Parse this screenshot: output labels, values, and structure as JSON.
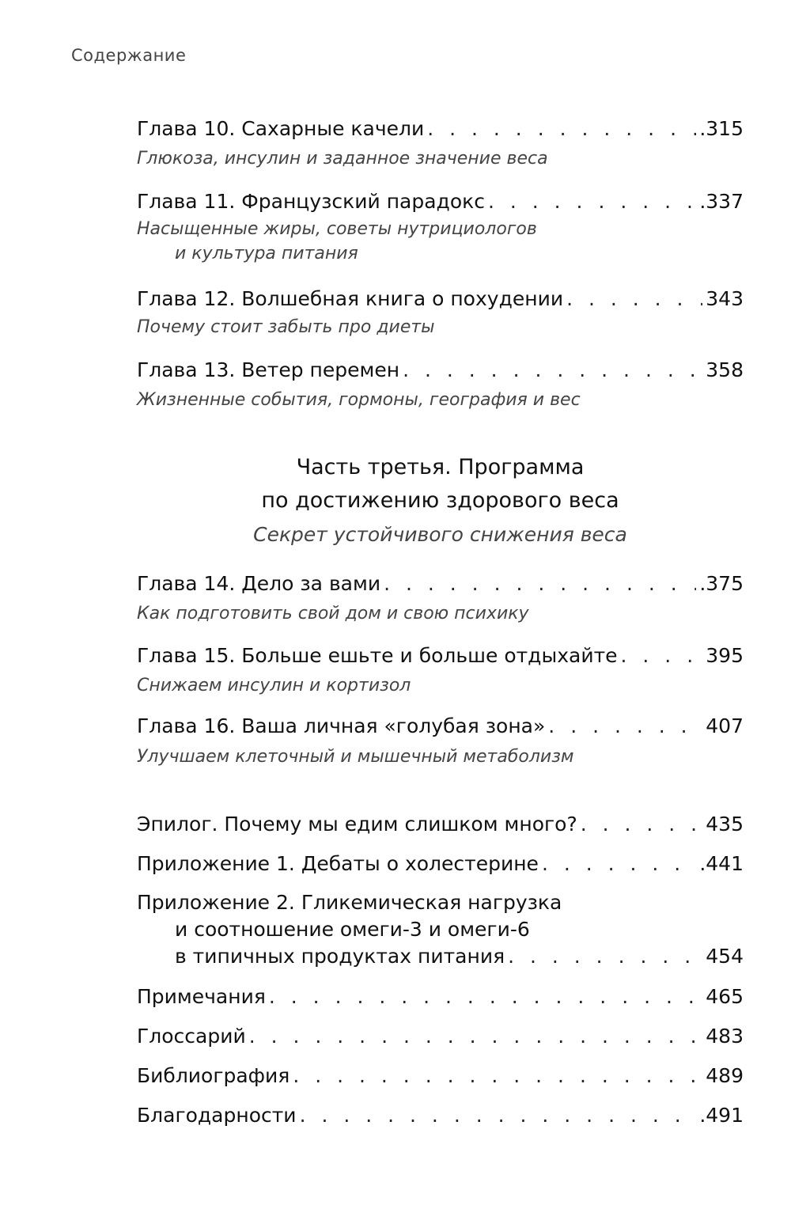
{
  "header": "Содержание",
  "chapters_a": [
    {
      "title": "Глава 10. Сахарные качели",
      "page": ".315",
      "subtitle": [
        "Глюкоза, инсулин и заданное значение веса"
      ]
    },
    {
      "title": "Глава 11. Французский парадокс",
      "page": ".337",
      "subtitle": [
        "Насыщенные жиры, советы нутрициологов",
        "и культура питания"
      ]
    },
    {
      "title": "Глава 12. Волшебная книга о похудении",
      "page": "343",
      "subtitle": [
        "Почему стоит забыть про диеты"
      ]
    },
    {
      "title": "Глава 13. Ветер перемен",
      "page": "358",
      "subtitle": [
        "Жизненные события, гормоны, география и вес"
      ]
    }
  ],
  "part3": {
    "title_line1": "Часть третья. Программа",
    "title_line2": "по достижению здорового веса",
    "subtitle": "Секрет устойчивого снижения веса"
  },
  "chapters_b": [
    {
      "title": "Глава 14. Дело за вами",
      "page": ".375",
      "subtitle": [
        "Как подготовить свой дом и свою психику"
      ]
    },
    {
      "title": "Глава 15. Больше ешьте и больше отдыхайте",
      "page": "395",
      "subtitle": [
        "Снижаем инсулин и кортизол"
      ]
    },
    {
      "title": "Глава 16. Ваша личная «голубая зона»",
      "page": "407",
      "subtitle": [
        "Улучшаем клеточный и мышечный метаболизм"
      ]
    }
  ],
  "back_matter": [
    {
      "title": "Эпилог. Почему мы едим слишком много?",
      "page": "435"
    },
    {
      "title": "Приложение 1. Дебаты о холестерине",
      "page": ".441"
    },
    {
      "title": "Приложение 2. Гликемическая нагрузка",
      "cont1": "и соотношение омеги-3 и омеги-6",
      "cont2": "в типичных продуктах питания",
      "page": "454"
    },
    {
      "title": "Примечания",
      "page": "465"
    },
    {
      "title": "Глоссарий",
      "page": "483"
    },
    {
      "title": "Библиография",
      "page": "489"
    },
    {
      "title": "Благодарности",
      "page": ".491"
    }
  ]
}
